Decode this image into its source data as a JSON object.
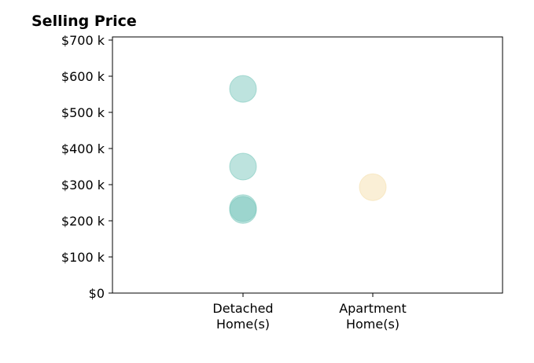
{
  "chart_data": {
    "type": "scatter",
    "title": "Selling Price",
    "xlabel": "",
    "ylabel": "",
    "categories": [
      [
        "Detached",
        "Home(s)"
      ],
      [
        "Apartment",
        "Home(s)"
      ]
    ],
    "ylim": [
      0,
      700000
    ],
    "yticks": [
      0,
      100000,
      200000,
      300000,
      400000,
      500000,
      600000,
      700000
    ],
    "ytick_labels": [
      "$0",
      "$100 k",
      "$200 k",
      "$300 k",
      "$400 k",
      "$500 k",
      "$600 k",
      "$700 k"
    ],
    "grid": false,
    "legend": "none",
    "points": [
      {
        "category": 0,
        "value": 565000
      },
      {
        "category": 0,
        "value": 350000
      },
      {
        "category": 0,
        "value": 235000
      },
      {
        "category": 0,
        "value": 230000
      },
      {
        "category": 1,
        "value": 293000
      }
    ],
    "colors": {
      "detached": "#7cc8bd",
      "apartment": "#f5dfad"
    }
  }
}
